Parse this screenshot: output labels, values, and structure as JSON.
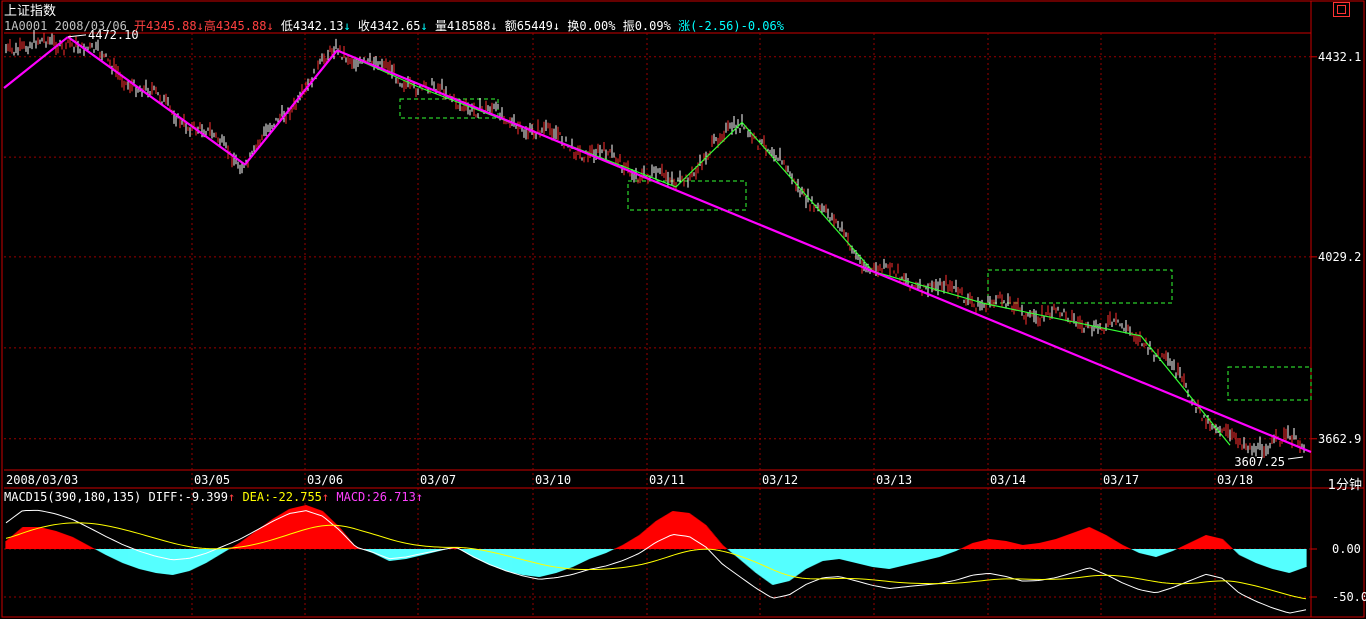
{
  "header": {
    "title": "上证指数",
    "info": [
      {
        "text": "1A0001 2008/03/06 ",
        "color": "#c0c0c0"
      },
      {
        "text": "开4345.88",
        "color": "#ff4040"
      },
      {
        "text": "↓",
        "color": "#ff4040"
      },
      {
        "text": "高4345.88",
        "color": "#ff4040"
      },
      {
        "text": "↓ ",
        "color": "#ff4040"
      },
      {
        "text": "低4342.13",
        "color": "#ffffff"
      },
      {
        "text": "↓ ",
        "color": "#00ffff"
      },
      {
        "text": "收4342.65",
        "color": "#ffffff"
      },
      {
        "text": "↓ ",
        "color": "#00ffff"
      },
      {
        "text": "量418588",
        "color": "#ffffff"
      },
      {
        "text": "↓ ",
        "color": "#ffffff"
      },
      {
        "text": "额65449",
        "color": "#ffffff"
      },
      {
        "text": "↓ ",
        "color": "#ffffff"
      },
      {
        "text": "换0.00% ",
        "color": "#ffffff"
      },
      {
        "text": "振0.09% ",
        "color": "#ffffff"
      },
      {
        "text": "涨(-2.56)-0.06%",
        "color": "#00ffff"
      }
    ]
  },
  "macd_header": [
    {
      "text": "MACD15(390,180,135) ",
      "color": "#ffffff"
    },
    {
      "text": "DIFF:-9.399",
      "color": "#ffffff"
    },
    {
      "text": "↑ ",
      "color": "#ff4040"
    },
    {
      "text": "DEA:-22.755",
      "color": "#ffff00"
    },
    {
      "text": "↑ ",
      "color": "#ff4040"
    },
    {
      "text": "MACD:26.713",
      "color": "#ff40ff"
    },
    {
      "text": "↑",
      "color": "#ff40ff"
    }
  ],
  "period_label": "1分钟",
  "colors": {
    "up": "#ff3030",
    "down": "#00ffff",
    "trend": "#ff00ff",
    "zigzag": "#33ff33",
    "box": "#33ff33",
    "grid": "#990000",
    "axis": "#cc0000",
    "diff": "#ffffff",
    "dea": "#ffff00",
    "macd_pos": "#ff0000",
    "macd_neg": "#55ffff"
  },
  "chart_data": [
    {
      "type": "line",
      "title": "上证指数",
      "x": [
        "2008/03/03",
        "03/05",
        "03/06",
        "03/07",
        "03/10",
        "03/11",
        "03/12",
        "03/13",
        "03/14",
        "03/17",
        "03/18"
      ],
      "y_ticks": [
        4432.1,
        4029.2,
        3662.9
      ],
      "ylim": [
        3600,
        4480
      ],
      "annotations": {
        "high": 4472.1,
        "low": 3607.25
      },
      "zigzag": [
        [
          "2008/03/03",
          4472.1
        ],
        [
          "03/05",
          4215
        ],
        [
          "03/06",
          4445
        ],
        [
          "03/07",
          4370
        ],
        [
          "03/10",
          4300
        ],
        [
          "03/11",
          4170
        ],
        [
          "03/12",
          4300
        ],
        [
          "03/13",
          4000
        ],
        [
          "03/14",
          3935
        ],
        [
          "03/17",
          3870
        ],
        [
          "03/18",
          3650
        ]
      ],
      "trendlines": [
        [
          [
            "2008/03/03",
            4420
          ],
          [
            "2008/03/03",
            4472.1
          ]
        ],
        [
          [
            "2008/03/03",
            4472.1
          ],
          [
            "03/05",
            4215
          ]
        ],
        [
          [
            "03/05",
            4215
          ],
          [
            "03/06",
            4445
          ]
        ],
        [
          [
            "03/06",
            4445
          ],
          [
            "03/18",
            3607.25
          ]
        ]
      ]
    },
    {
      "type": "area",
      "title": "MACD15(390,180,135)",
      "series": [
        {
          "name": "DIFF",
          "value": -9.399
        },
        {
          "name": "DEA",
          "value": -22.755
        },
        {
          "name": "MACD",
          "value": 26.713
        }
      ],
      "y_ticks": [
        0.0,
        -50.0
      ],
      "macd_hist": [
        8,
        22,
        22,
        18,
        12,
        3,
        -6,
        -14,
        -20,
        -24,
        -26,
        -22,
        -14,
        -4,
        6,
        18,
        30,
        40,
        44,
        38,
        22,
        2,
        -4,
        -12,
        -10,
        -6,
        -2,
        2,
        -8,
        -16,
        -22,
        -26,
        -28,
        -24,
        -18,
        -10,
        -4,
        4,
        14,
        28,
        38,
        36,
        24,
        4,
        -10,
        -24,
        -36,
        -32,
        -20,
        -12,
        -10,
        -14,
        -18,
        -20,
        -16,
        -12,
        -8,
        -2,
        6,
        10,
        8,
        4,
        6,
        10,
        16,
        22,
        14,
        4,
        -4,
        -8,
        -2,
        6,
        14,
        10,
        -6,
        -14,
        -20,
        -24,
        -18
      ]
    }
  ]
}
